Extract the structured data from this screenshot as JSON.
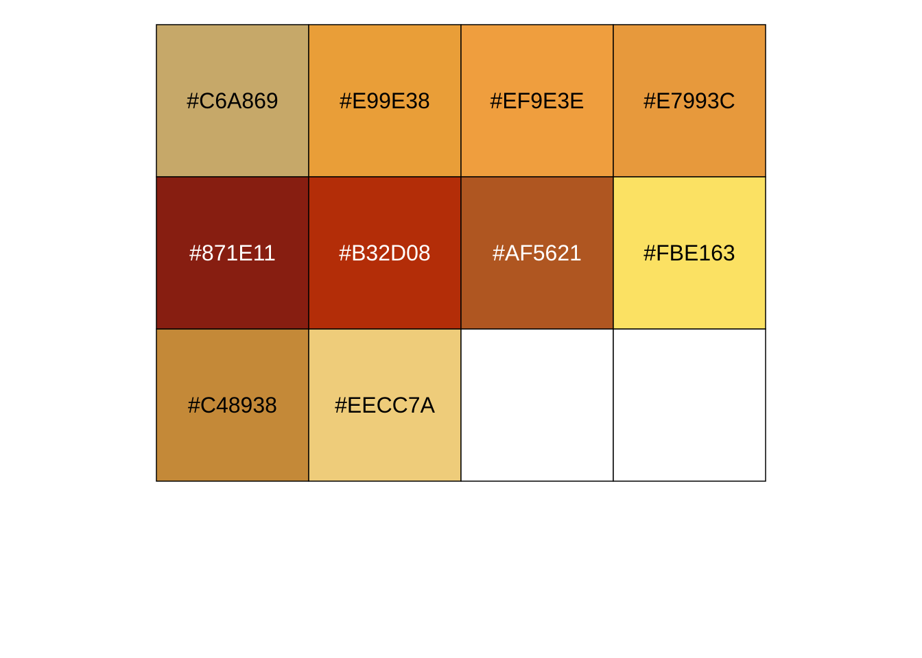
{
  "chart_data": {
    "type": "heatmap",
    "title": "",
    "columns": 4,
    "rows": 3,
    "cells": [
      {
        "color": "#C6A869",
        "label": "#C6A869",
        "text_color": "#000000"
      },
      {
        "color": "#E99E38",
        "label": "#E99E38",
        "text_color": "#000000"
      },
      {
        "color": "#EF9E3E",
        "label": "#EF9E3E",
        "text_color": "#000000"
      },
      {
        "color": "#E7993C",
        "label": "#E7993C",
        "text_color": "#000000"
      },
      {
        "color": "#871E11",
        "label": "#871E11",
        "text_color": "#FFFFFF"
      },
      {
        "color": "#B32D08",
        "label": "#B32D08",
        "text_color": "#FFFFFF"
      },
      {
        "color": "#AF5621",
        "label": "#AF5621",
        "text_color": "#FFFFFF"
      },
      {
        "color": "#FBE163",
        "label": "#FBE163",
        "text_color": "#000000"
      },
      {
        "color": "#C48938",
        "label": "#C48938",
        "text_color": "#000000"
      },
      {
        "color": "#EECC7A",
        "label": "#EECC7A",
        "text_color": "#000000"
      },
      {
        "color": "#FFFFFF",
        "label": "",
        "text_color": "#000000"
      },
      {
        "color": "#FFFFFF",
        "label": "",
        "text_color": "#000000"
      }
    ]
  }
}
